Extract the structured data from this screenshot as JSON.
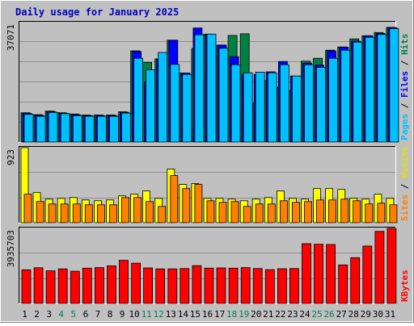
{
  "chart_data": {
    "type": "bar",
    "title": "Daily usage for January 2025",
    "x": [
      "1",
      "2",
      "3",
      "4",
      "5",
      "6",
      "7",
      "8",
      "9",
      "10",
      "11",
      "12",
      "13",
      "14",
      "15",
      "16",
      "17",
      "18",
      "19",
      "20",
      "21",
      "22",
      "23",
      "24",
      "25",
      "26",
      "27",
      "28",
      "29",
      "30",
      "31"
    ],
    "weekend_days": [
      "4",
      "5",
      "11",
      "12",
      "18",
      "19",
      "25",
      "26"
    ],
    "panels": [
      {
        "max_label": "37071",
        "ylim": [
          0,
          37071
        ],
        "series": [
          {
            "name": "Hits",
            "color": "#008040",
            "values": [
              9100,
              8500,
              9600,
              9100,
              8700,
              8400,
              8400,
              8400,
              9400,
              28300,
              24700,
              25800,
              31600,
              21400,
              29000,
              33500,
              30000,
              33100,
              33600,
              12000,
              19000,
              17000,
              16000,
              25100,
              26000,
              28500,
              29500,
              32000,
              33000,
              34000,
              35600
            ]
          },
          {
            "name": "Files",
            "color": "#0000ff",
            "values": [
              8900,
              8300,
              9400,
              8900,
              8500,
              8200,
              8200,
              8200,
              9200,
              28100,
              18600,
              25600,
              31600,
              21400,
              35400,
              33200,
              30100,
              26500,
              21000,
              21000,
              21800,
              25000,
              20500,
              24500,
              23900,
              28300,
              29400,
              31300,
              33000,
              33700,
              35500
            ]
          },
          {
            "name": "Pages",
            "color": "#00c0ff",
            "values": [
              8600,
              8000,
              9200,
              8800,
              8200,
              8000,
              8000,
              8000,
              9000,
              26000,
              22400,
              27800,
              24100,
              21000,
              33300,
              33500,
              29100,
              24000,
              21500,
              21700,
              21500,
              24000,
              20500,
              24000,
              23200,
              26000,
              28500,
              31000,
              32500,
              33400,
              35200
            ]
          }
        ]
      },
      {
        "max_label": "923",
        "ylim": [
          0,
          923
        ],
        "series": [
          {
            "name": "Visits",
            "color": "#ffff00",
            "values": [
              923,
              370,
              290,
              300,
              310,
              280,
              270,
              280,
              330,
              350,
              390,
              300,
              660,
              470,
              480,
              300,
              300,
              290,
              270,
              290,
              310,
              390,
              300,
              290,
              420,
              420,
              410,
              300,
              290,
              350,
              300
            ]
          },
          {
            "name": "Sites",
            "color": "#ff8000",
            "values": [
              350,
              260,
              230,
              230,
              230,
              220,
              220,
              220,
              310,
              310,
              260,
              200,
              580,
              420,
              470,
              270,
              250,
              260,
              200,
              230,
              230,
              270,
              250,
              260,
              280,
              280,
              290,
              270,
              230,
              240,
              220
            ]
          }
        ]
      },
      {
        "max_label": "3935703",
        "ylim": [
          0,
          3935703
        ],
        "series": [
          {
            "name": "KBytes",
            "color": "#ff0000",
            "values": [
              1760000,
              1870000,
              1710000,
              1810000,
              1690000,
              1850000,
              1880000,
              1970000,
              2260000,
              2110000,
              1860000,
              1810000,
              1810000,
              1830000,
              1980000,
              1850000,
              1860000,
              1850000,
              1880000,
              1830000,
              1770000,
              1820000,
              1830000,
              3130000,
              3100000,
              3090000,
              2020000,
              2400000,
              3010000,
              3780000,
              3935703
            ]
          }
        ]
      }
    ]
  }
}
